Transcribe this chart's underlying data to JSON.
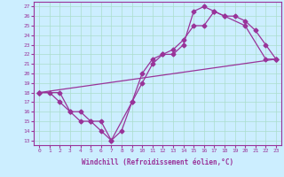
{
  "xlabel": "Windchill (Refroidissement éolien,°C)",
  "xlim": [
    0,
    23
  ],
  "ylim": [
    13,
    27
  ],
  "xticks": [
    0,
    1,
    2,
    3,
    4,
    5,
    6,
    7,
    8,
    9,
    10,
    11,
    12,
    13,
    14,
    15,
    16,
    17,
    18,
    19,
    20,
    21,
    22,
    23
  ],
  "yticks": [
    13,
    14,
    15,
    16,
    17,
    18,
    19,
    20,
    21,
    22,
    23,
    24,
    25,
    26,
    27
  ],
  "bg_color": "#cceeff",
  "line_color": "#993399",
  "grid_color": "#aaddcc",
  "line1_x": [
    0,
    1,
    2,
    3,
    4,
    5,
    6,
    7,
    8,
    9,
    10,
    11,
    12,
    13,
    14,
    15,
    16,
    17,
    18,
    20,
    22,
    23
  ],
  "line1_y": [
    18,
    18,
    17,
    16,
    15,
    15,
    14,
    13,
    14,
    17,
    19,
    21,
    22,
    22,
    23,
    26.5,
    27,
    26.5,
    26,
    25,
    21.5,
    21.5
  ],
  "line2_x": [
    0,
    2,
    3,
    4,
    5,
    6,
    7,
    9,
    10,
    11,
    12,
    13,
    14,
    15,
    16,
    17,
    18,
    19,
    20,
    21,
    22,
    23
  ],
  "line2_y": [
    18,
    18,
    16,
    16,
    15,
    15,
    13,
    17,
    20,
    21.5,
    22,
    22.5,
    23.5,
    25,
    25,
    26.5,
    26,
    26,
    25.5,
    24.5,
    23,
    21.5
  ],
  "line3_x": [
    0,
    23
  ],
  "line3_y": [
    18,
    21.5
  ],
  "marker": "D",
  "markersize": 2.5,
  "linewidth": 0.9
}
